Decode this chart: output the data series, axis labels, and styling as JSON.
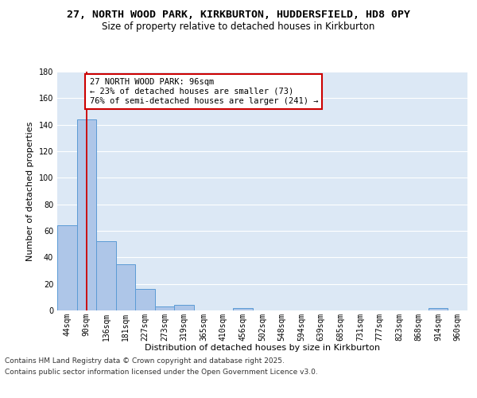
{
  "title_line1": "27, NORTH WOOD PARK, KIRKBURTON, HUDDERSFIELD, HD8 0PY",
  "title_line2": "Size of property relative to detached houses in Kirkburton",
  "xlabel": "Distribution of detached houses by size in Kirkburton",
  "ylabel": "Number of detached properties",
  "categories": [
    "44sqm",
    "90sqm",
    "136sqm",
    "181sqm",
    "227sqm",
    "273sqm",
    "319sqm",
    "365sqm",
    "410sqm",
    "456sqm",
    "502sqm",
    "548sqm",
    "594sqm",
    "639sqm",
    "685sqm",
    "731sqm",
    "777sqm",
    "823sqm",
    "868sqm",
    "914sqm",
    "960sqm"
  ],
  "values": [
    64,
    144,
    52,
    35,
    16,
    3,
    4,
    0,
    0,
    2,
    0,
    0,
    0,
    0,
    0,
    0,
    0,
    0,
    0,
    2,
    0
  ],
  "bar_color": "#aec6e8",
  "bar_edge_color": "#5b9bd5",
  "property_line_x": 1.0,
  "property_line_color": "#cc0000",
  "annotation_text": "27 NORTH WOOD PARK: 96sqm\n← 23% of detached houses are smaller (73)\n76% of semi-detached houses are larger (241) →",
  "annotation_box_color": "#ffffff",
  "annotation_box_edge": "#cc0000",
  "ylim": [
    0,
    180
  ],
  "yticks": [
    0,
    20,
    40,
    60,
    80,
    100,
    120,
    140,
    160,
    180
  ],
  "background_color": "#dce8f5",
  "footer_line1": "Contains HM Land Registry data © Crown copyright and database right 2025.",
  "footer_line2": "Contains public sector information licensed under the Open Government Licence v3.0.",
  "title_fontsize": 9.5,
  "subtitle_fontsize": 8.5,
  "axis_label_fontsize": 8,
  "tick_fontsize": 7,
  "annotation_fontsize": 7.5,
  "footer_fontsize": 6.5
}
